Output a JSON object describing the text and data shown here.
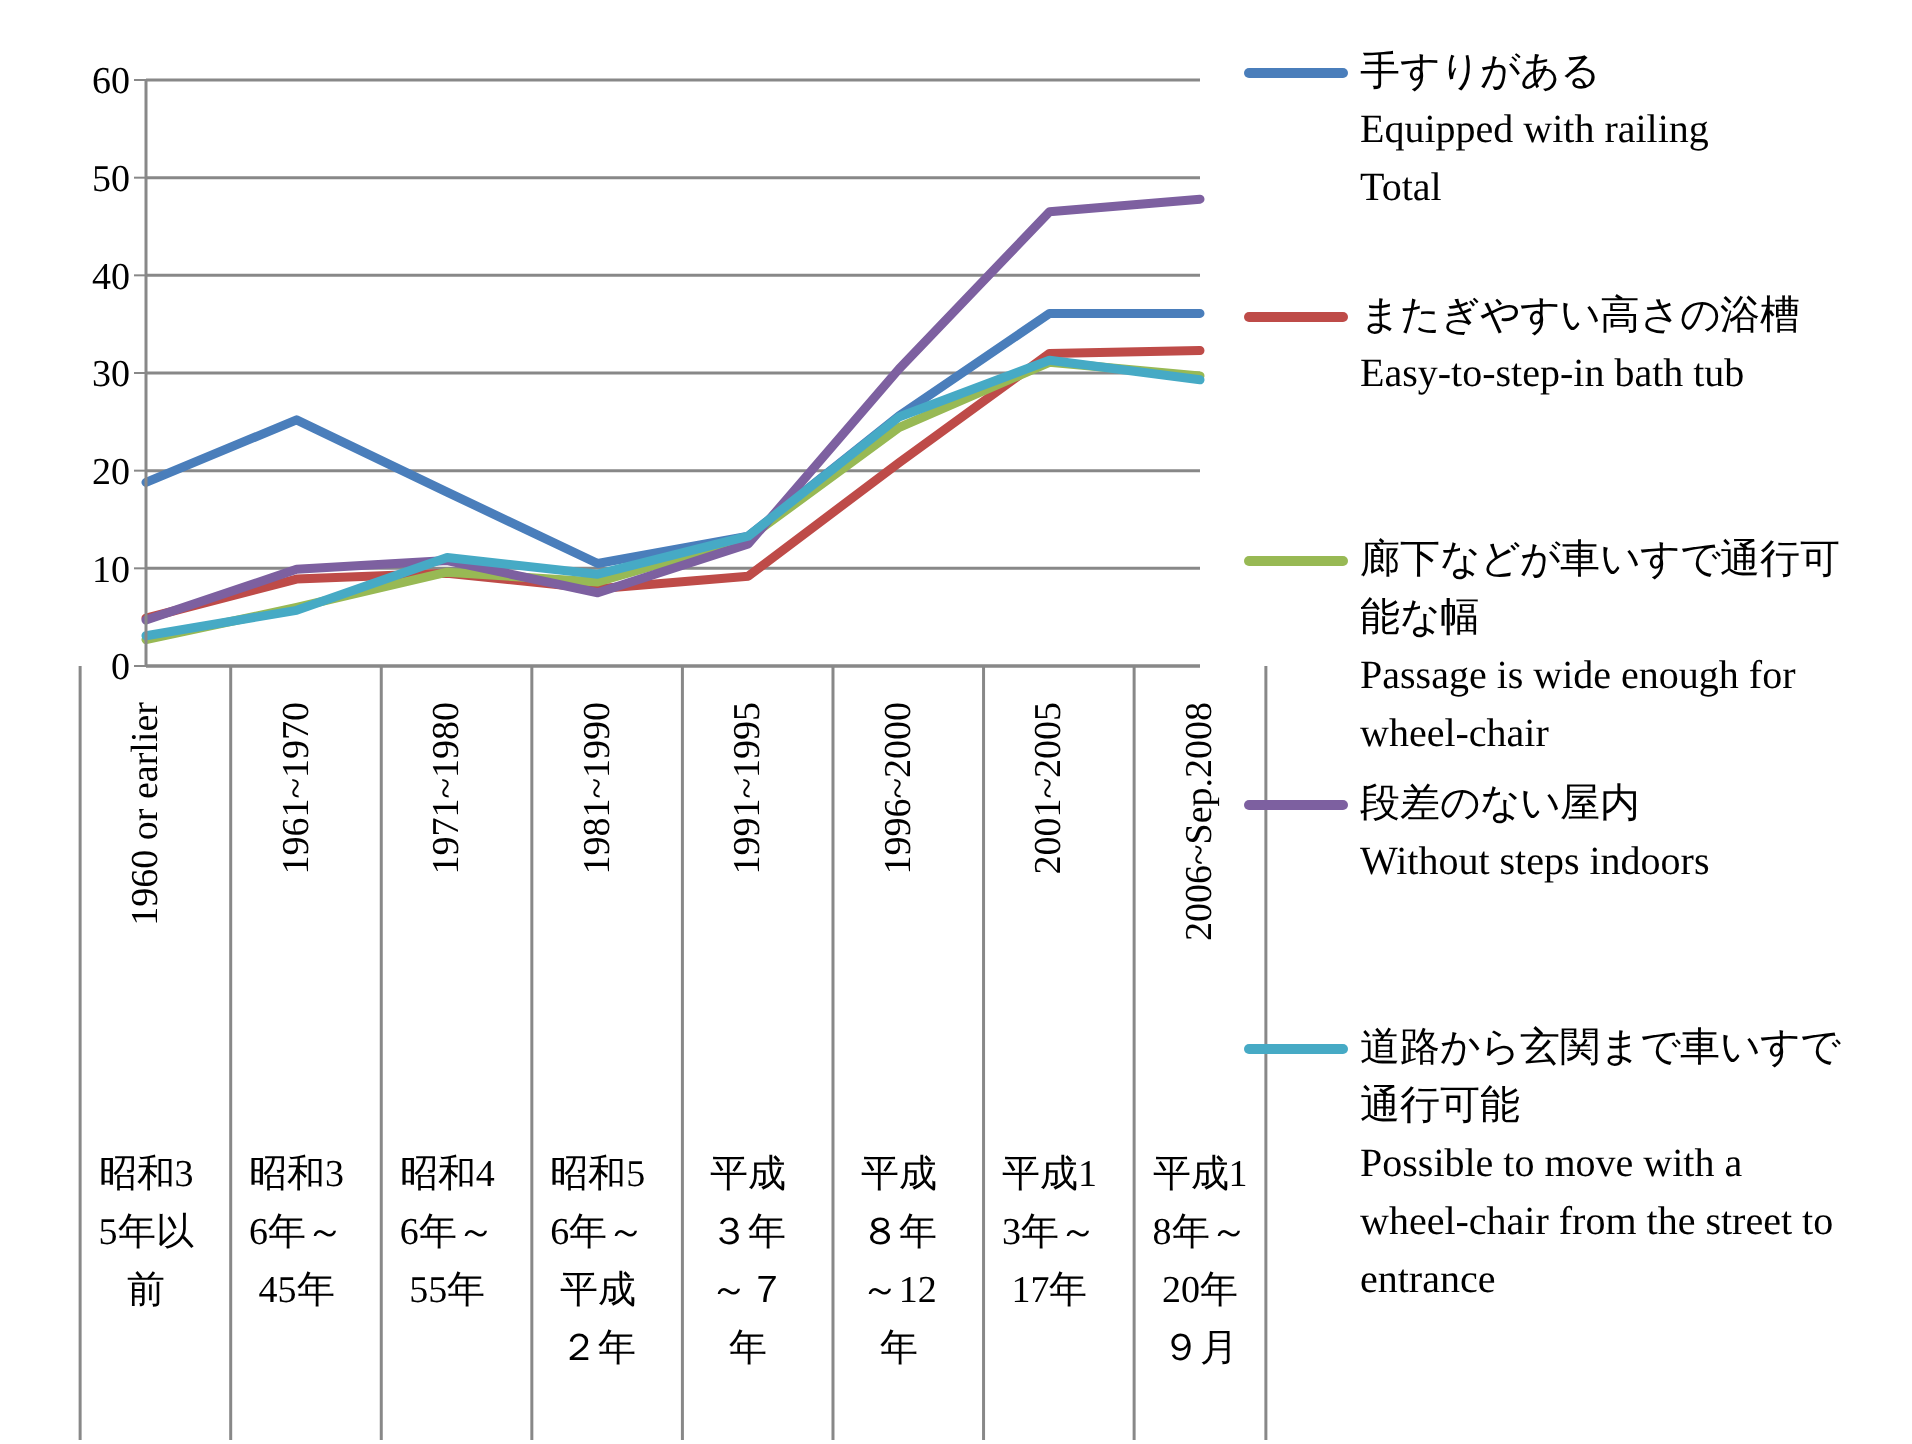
{
  "chart_data": {
    "type": "line",
    "categories": [
      "1960 or earlier",
      "1961~1970",
      "1971~1980",
      "1981~1990",
      "1991~1995",
      "1996~2000",
      "2001~2005",
      "2006~Sep.2008"
    ],
    "annotations": [
      "昭和35年以前",
      "昭和36年～45年",
      "昭和46年～55年",
      "昭和56年～平成２年",
      "平成３年～７年",
      "平成８年～12年",
      "平成13年～17年",
      "平成18年～20年９月"
    ],
    "series": [
      {
        "name": "手すりがある\nEquipped with railing\nTotal",
        "color": "#4a7ebb",
        "values": [
          18.8,
          25.2,
          17.8,
          10.5,
          13.3,
          25.6,
          36.1,
          36.1
        ]
      },
      {
        "name": "またぎやすい高さの浴槽\nEasy-to-step-in bath tub",
        "color": "#be4b48",
        "values": [
          4.9,
          8.9,
          9.5,
          7.9,
          9.2,
          20.8,
          32.0,
          32.3
        ]
      },
      {
        "name": "廊下などが車いすで通行可能な幅\nPassage is wide enough for wheel-chair",
        "color": "#98b954",
        "values": [
          2.7,
          6.0,
          9.6,
          8.6,
          13.1,
          24.4,
          31.1,
          29.7
        ]
      },
      {
        "name": "段差のない屋内\nWithout steps indoors",
        "color": "#7d60a0",
        "values": [
          4.7,
          9.9,
          10.8,
          7.5,
          12.5,
          30.4,
          46.5,
          47.8
        ]
      },
      {
        "name": "道路から玄関まで車いすで通行可能\nPossible to move with a wheel-chair from the street to entrance",
        "color": "#46aac5",
        "values": [
          3.1,
          5.7,
          11.1,
          9.4,
          13.3,
          25.5,
          31.3,
          29.3
        ]
      }
    ],
    "ylim": [
      0,
      60
    ],
    "yticks": [
      0,
      10,
      20,
      30,
      40,
      50,
      60
    ],
    "grid": "y",
    "legend": "right"
  }
}
